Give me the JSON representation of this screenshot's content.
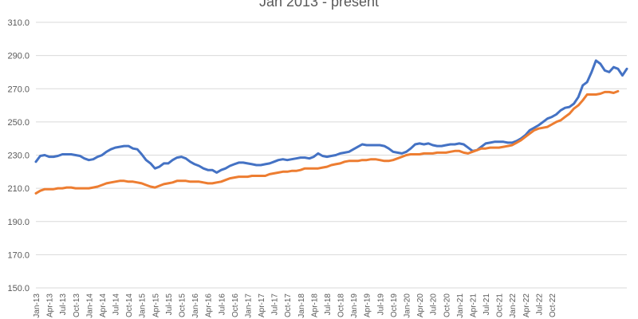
{
  "chart_data": {
    "type": "line",
    "title": "Jan 2013 - present",
    "xlabel": "",
    "ylabel": "",
    "ylim": [
      150,
      310
    ],
    "yticks": [
      "150.0",
      "170.0",
      "190.0",
      "210.0",
      "230.0",
      "250.0",
      "270.0",
      "290.0",
      "310.0"
    ],
    "grid": true,
    "legend": "none",
    "x_tick_labels": [
      "Jan-13",
      "Apr-13",
      "Jul-13",
      "Oct-13",
      "Jan-14",
      "Apr-14",
      "Jul-14",
      "Oct-14",
      "Jan-15",
      "Apr-15",
      "Jul-15",
      "Oct-15",
      "Jan-16",
      "Apr-16",
      "Jul-16",
      "Oct-16",
      "Jan-17",
      "Apr-17",
      "Jul-17",
      "Oct-17",
      "Jan-18",
      "Apr-18",
      "Jul-18",
      "Oct-18",
      "Jan-19",
      "Apr-19",
      "Jul-19",
      "Oct-19",
      "Jan-20",
      "Apr-20",
      "Jul-20",
      "Oct-20",
      "Jan-21",
      "Apr-21",
      "Jul-21",
      "Oct-21",
      "Jan-22",
      "Apr-22",
      "Jul-22",
      "Oct-22"
    ],
    "series": [
      {
        "color": "#4472c4",
        "values": [
          226,
          229.5,
          230,
          229,
          229,
          229.5,
          230.5,
          230.5,
          230.5,
          230,
          229.5,
          228,
          227,
          227.5,
          229,
          230,
          232,
          233.5,
          234.5,
          235,
          235.5,
          235.5,
          234,
          233.5,
          230.5,
          227,
          225,
          222,
          223,
          225,
          225,
          227,
          228.5,
          229,
          228,
          226,
          224.5,
          223.5,
          222,
          221,
          221,
          219.5,
          221,
          222,
          223.5,
          224.5,
          225.5,
          225.5,
          225,
          224.5,
          224,
          224,
          224.5,
          225,
          226,
          227,
          227.5,
          227,
          227.5,
          228,
          228.5,
          228.5,
          228,
          229,
          231,
          229.5,
          229,
          229.5,
          230,
          231,
          231.5,
          232,
          233.5,
          235,
          236.5,
          236,
          236,
          236,
          236,
          235.5,
          234,
          232,
          231.5,
          231,
          232,
          234,
          236.5,
          237,
          236.5,
          237,
          236,
          235.5,
          235.5,
          236,
          236.5,
          236.5,
          237,
          236.5,
          234.5,
          232.5,
          233,
          235,
          237,
          237.5,
          238,
          238,
          238,
          237.5,
          237.5,
          238.5,
          240,
          242,
          245,
          246.5,
          248,
          250,
          252,
          253,
          254.5,
          257,
          258.5,
          259,
          261,
          265,
          272,
          274,
          280,
          287,
          285,
          281,
          280,
          283,
          282,
          278,
          282
        ]
      },
      {
        "color": "#ed7d31",
        "values": [
          207,
          208.5,
          209.5,
          209.5,
          209.5,
          210,
          210,
          210.5,
          210.5,
          210,
          210,
          210,
          210,
          210.5,
          211,
          212,
          213,
          213.5,
          214,
          214.5,
          214.5,
          214,
          214,
          213.5,
          213,
          212,
          211,
          210.5,
          211.5,
          212.5,
          213,
          213.5,
          214.5,
          214.5,
          214.5,
          214,
          214,
          214,
          213.5,
          213,
          213,
          213.5,
          214,
          215,
          216,
          216.5,
          217,
          217,
          217,
          217.5,
          217.5,
          217.5,
          217.5,
          218.5,
          219,
          219.5,
          220,
          220,
          220.5,
          220.5,
          221,
          222,
          222,
          222,
          222,
          222.5,
          223,
          224,
          224.5,
          225,
          226,
          226.5,
          226.5,
          226.5,
          227,
          227,
          227.5,
          227.5,
          227,
          226.5,
          226.5,
          227,
          228,
          229,
          230,
          230.5,
          230.5,
          230.5,
          231,
          231,
          231,
          231.5,
          231.5,
          231.5,
          232,
          232.5,
          232.5,
          231.5,
          231,
          232,
          233,
          234,
          234,
          234.5,
          234.5,
          234.5,
          235,
          235.5,
          236,
          237.5,
          239,
          241,
          243,
          245,
          246,
          246.5,
          247,
          248.5,
          250,
          251,
          253,
          255,
          258,
          260,
          263,
          266.5,
          266.5,
          266.5,
          267,
          268,
          268,
          267.5,
          268.5
        ]
      }
    ]
  }
}
